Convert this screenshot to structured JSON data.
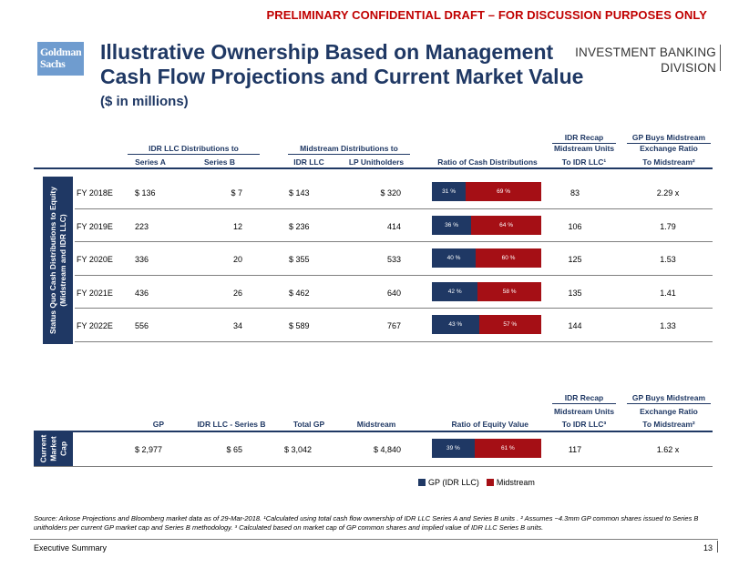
{
  "banner": "PRELIMINARY CONFIDENTIAL DRAFT – FOR DISCUSSION PURPOSES ONLY",
  "logo": {
    "line1": "Goldman",
    "line2": "Sachs"
  },
  "title": {
    "line1": "Illustrative Ownership Based on Management",
    "line2": "Cash Flow Projections and Current Market Value"
  },
  "subtitle": "($ in millions)",
  "division": {
    "line1": "INVESTMENT BANKING",
    "line2": "DIVISION"
  },
  "colors": {
    "gp": "#1f3864",
    "midstream": "#a50f15",
    "accent": "#c00000"
  },
  "table1": {
    "group_idr": "IDR LLC Distributions to",
    "group_mid": "Midstream Distributions to",
    "idr_recap": "IDR Recap",
    "idr_recap_sub": "Midstream Units",
    "gp_buys": "GP Buys Midstream",
    "gp_buys_sub": "Exchange Ratio",
    "cols": {
      "series_a": "Series A",
      "series_b": "Series B",
      "idr_llc": "IDR LLC",
      "lp": "LP Unitholders",
      "ratio": "Ratio of Cash Distributions",
      "to_idr": "To IDR LLC¹",
      "to_mid": "To Midstream²"
    },
    "side_label_line1": "Status Quo Cash Distributions to Equity",
    "side_label_line2": "(Midstream and IDR LLC)",
    "rows": [
      {
        "year": "FY 2018E",
        "series_a": "$ 136",
        "series_b": "$ 7",
        "idr_llc": "$ 143",
        "lp": "$ 320",
        "gp_pct": 31,
        "ms_pct": 69,
        "gp_label": "31 %",
        "ms_label": "69 %",
        "units": "83",
        "ratio": "2.29 x"
      },
      {
        "year": "FY 2019E",
        "series_a": "223",
        "series_b": "12",
        "idr_llc": "$ 236",
        "lp": "414",
        "gp_pct": 36,
        "ms_pct": 64,
        "gp_label": "36 %",
        "ms_label": "64 %",
        "units": "106",
        "ratio": "1.79"
      },
      {
        "year": "FY 2020E",
        "series_a": "336",
        "series_b": "20",
        "idr_llc": "$ 355",
        "lp": "533",
        "gp_pct": 40,
        "ms_pct": 60,
        "gp_label": "40 %",
        "ms_label": "60 %",
        "units": "125",
        "ratio": "1.53"
      },
      {
        "year": "FY 2021E",
        "series_a": "436",
        "series_b": "26",
        "idr_llc": "$ 462",
        "lp": "640",
        "gp_pct": 42,
        "ms_pct": 58,
        "gp_label": "42 %",
        "ms_label": "58 %",
        "units": "135",
        "ratio": "1.41"
      },
      {
        "year": "FY 2022E",
        "series_a": "556",
        "series_b": "34",
        "idr_llc": "$ 589",
        "lp": "767",
        "gp_pct": 43,
        "ms_pct": 57,
        "gp_label": "43 %",
        "ms_label": "57 %",
        "units": "144",
        "ratio": "1.33"
      }
    ]
  },
  "table2": {
    "idr_recap": "IDR Recap",
    "idr_recap_sub": "Midstream Units",
    "gp_buys": "GP Buys Midstream",
    "gp_buys_sub": "Exchange Ratio",
    "cols": {
      "gp": "GP",
      "idr_b": "IDR LLC - Series B",
      "total_gp": "Total GP",
      "midstream": "Midstream",
      "ratio": "Ratio of Equity Value",
      "to_idr": "To IDR LLC³",
      "to_mid": "To Midstream²"
    },
    "side_label_line1": "Current",
    "side_label_line2": "Market",
    "side_label_line3": "Cap",
    "row": {
      "gp": "$ 2,977",
      "idr_b": "$ 65",
      "total_gp": "$ 3,042",
      "midstream": "$ 4,840",
      "gp_pct": 39,
      "ms_pct": 61,
      "gp_label": "39 %",
      "ms_label": "61 %",
      "units": "117",
      "ratio": "1.62 x"
    }
  },
  "legend": {
    "gp": "GP (IDR LLC)",
    "midstream": "Midstream"
  },
  "source": "Source: Arkose Projections and Bloomberg market data as of 29-Mar-2018. ¹Calculated using total cash flow ownership of IDR LLC Series A and Series B units . ² Assumes ~4.3mm GP common shares issued to Series B unitholders per current GP market cap and Series B methodology. ³ Calculated based on market cap of GP common shares and implied value of IDR LLC Series B units.",
  "footer": "Executive Summary",
  "page_number": "13"
}
